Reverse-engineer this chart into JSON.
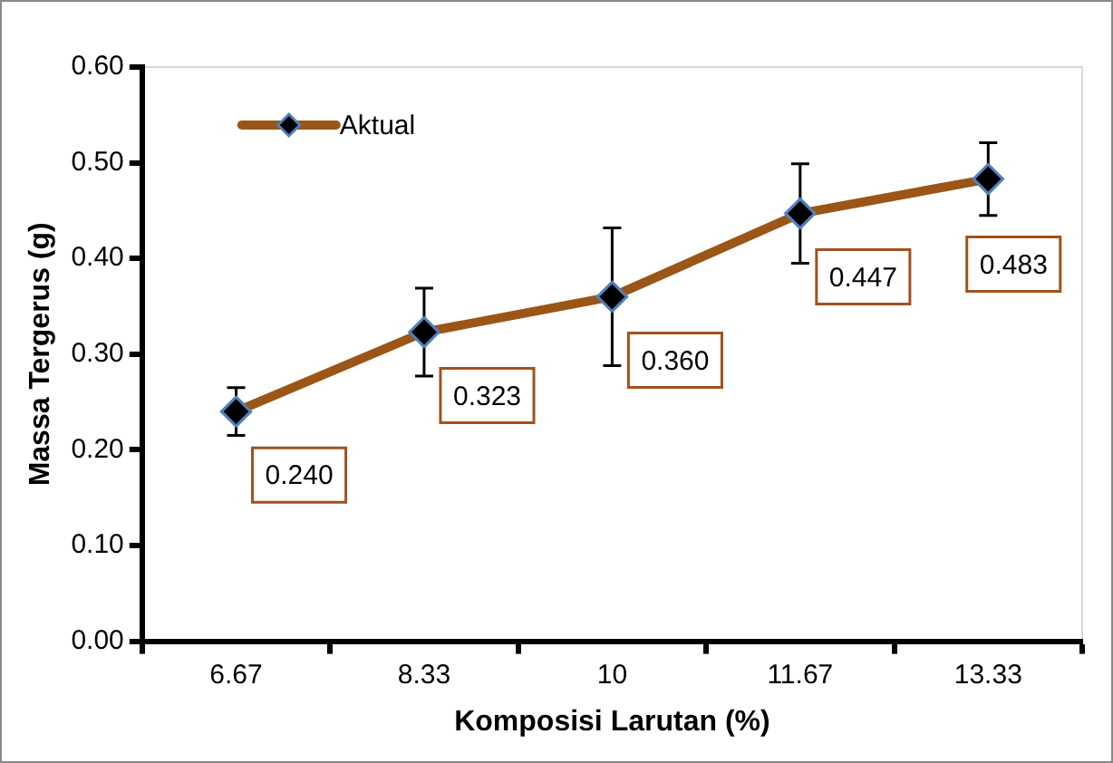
{
  "chart_data": {
    "type": "line",
    "xlabel": "Komposisi Larutan (%)",
    "ylabel": "Massa Tergerus (g)",
    "categories": [
      "6.67",
      "8.33",
      "10",
      "11.67",
      "13.33"
    ],
    "series": [
      {
        "name": "Aktual",
        "color": "#9b5516",
        "values": [
          0.24,
          0.323,
          0.36,
          0.447,
          0.483
        ],
        "errors": [
          0.025,
          0.046,
          0.072,
          0.052,
          0.038
        ],
        "value_labels": [
          "0.240",
          "0.323",
          "0.360",
          "0.447",
          "0.483"
        ]
      }
    ],
    "ylim": [
      0,
      0.6
    ],
    "yticks": [
      {
        "value": 0,
        "label": "0.00"
      },
      {
        "value": 0.1,
        "label": "0.10"
      },
      {
        "value": 0.2,
        "label": "0.20"
      },
      {
        "value": 0.3,
        "label": "0.30"
      },
      {
        "value": 0.4,
        "label": "0.40"
      },
      {
        "value": 0.5,
        "label": "0.50"
      },
      {
        "value": 0.6,
        "label": "0.60"
      }
    ],
    "grid": false,
    "legend": "top left",
    "marker": "diamond",
    "line_style": "solid"
  }
}
